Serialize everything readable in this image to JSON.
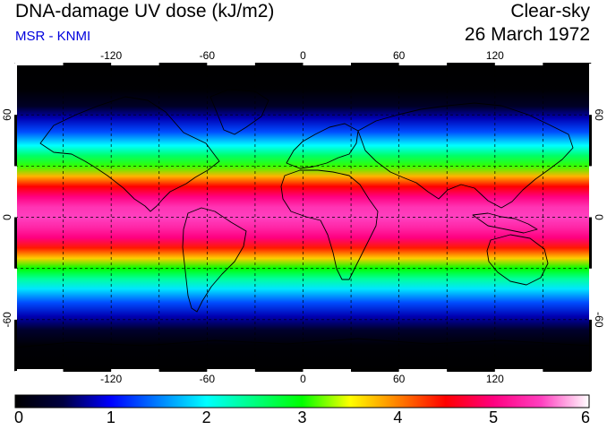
{
  "header": {
    "title": "DNA-damage UV dose (kJ/m2)",
    "subtitle": "MSR - KNMI",
    "mode": "Clear-sky",
    "date": "26 March 1972"
  },
  "colors": {
    "subtitle": "#0000dd",
    "frame": "#000000",
    "grid": "#000000"
  },
  "map": {
    "projection": "equirectangular",
    "lon_range": [
      -180,
      180
    ],
    "lat_range": [
      -90,
      90
    ],
    "lon_ticks": [
      {
        "value": -120,
        "label": "-120"
      },
      {
        "value": -60,
        "label": "-60"
      },
      {
        "value": 0,
        "label": "0"
      },
      {
        "value": 60,
        "label": "60"
      },
      {
        "value": 120,
        "label": "120"
      }
    ],
    "lat_ticks": [
      {
        "value": 60,
        "label": "60"
      },
      {
        "value": 0,
        "label": "0"
      },
      {
        "value": -60,
        "label": "-60"
      }
    ],
    "grid_lon": [
      -150,
      -120,
      -90,
      -60,
      -30,
      0,
      30,
      60,
      90,
      120,
      150
    ],
    "grid_lat": [
      -60,
      -30,
      0,
      30,
      60
    ],
    "grid": "dashed"
  },
  "colorbar": {
    "min": 0,
    "max": 6,
    "ticks": [
      "0",
      "1",
      "2",
      "3",
      "4",
      "5",
      "6"
    ],
    "stops": [
      {
        "v": 0.0,
        "c": "#000000"
      },
      {
        "v": 0.5,
        "c": "#000040"
      },
      {
        "v": 1.0,
        "c": "#0000ff"
      },
      {
        "v": 1.5,
        "c": "#0080ff"
      },
      {
        "v": 2.0,
        "c": "#00ffff"
      },
      {
        "v": 2.5,
        "c": "#00ff80"
      },
      {
        "v": 3.0,
        "c": "#00ff00"
      },
      {
        "v": 3.5,
        "c": "#ffff00"
      },
      {
        "v": 4.0,
        "c": "#ff8000"
      },
      {
        "v": 4.5,
        "c": "#ff0000"
      },
      {
        "v": 5.0,
        "c": "#ff0080"
      },
      {
        "v": 5.5,
        "c": "#ff40c0"
      },
      {
        "v": 6.0,
        "c": "#ffffff"
      }
    ]
  },
  "dose_profile": [
    {
      "lat": 90,
      "v": 0.0
    },
    {
      "lat": 75,
      "v": 0.02
    },
    {
      "lat": 65,
      "v": 0.3
    },
    {
      "lat": 58,
      "v": 0.8
    },
    {
      "lat": 50,
      "v": 1.3
    },
    {
      "lat": 42,
      "v": 2.0
    },
    {
      "lat": 36,
      "v": 2.6
    },
    {
      "lat": 30,
      "v": 3.1
    },
    {
      "lat": 24,
      "v": 3.8
    },
    {
      "lat": 18,
      "v": 4.5
    },
    {
      "lat": 12,
      "v": 5.0
    },
    {
      "lat": 6,
      "v": 5.4
    },
    {
      "lat": 0,
      "v": 5.5
    },
    {
      "lat": -6,
      "v": 5.3
    },
    {
      "lat": -12,
      "v": 5.0
    },
    {
      "lat": -18,
      "v": 4.4
    },
    {
      "lat": -24,
      "v": 3.7
    },
    {
      "lat": -30,
      "v": 3.0
    },
    {
      "lat": -36,
      "v": 2.4
    },
    {
      "lat": -42,
      "v": 1.9
    },
    {
      "lat": -50,
      "v": 1.3
    },
    {
      "lat": -58,
      "v": 0.8
    },
    {
      "lat": -66,
      "v": 0.35
    },
    {
      "lat": -75,
      "v": 0.05
    },
    {
      "lat": -90,
      "v": 0.0
    }
  ]
}
